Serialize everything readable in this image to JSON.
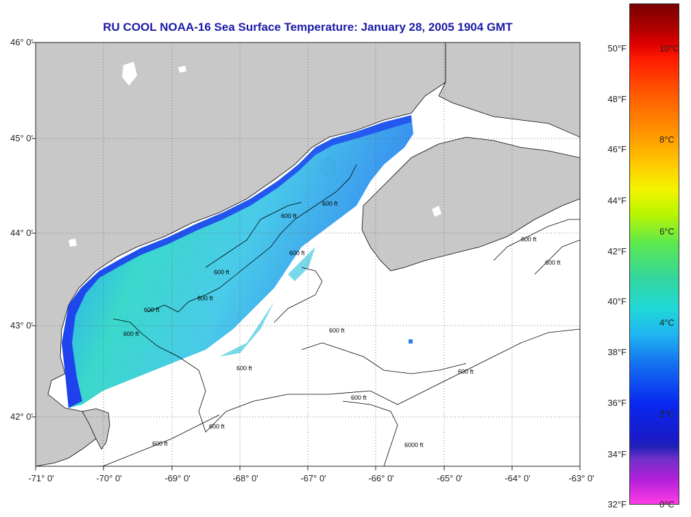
{
  "title": "RU COOL  NOAA-16  Sea Surface Temperature:  January 28, 2005 1904 GMT",
  "latitude_labels": [
    "46° 0'",
    "45° 0'",
    "44° 0'",
    "43° 0'",
    "42° 0'"
  ],
  "longitude_labels": [
    "-71° 0'",
    "-70° 0'",
    "-69° 0'",
    "-68° 0'",
    "-67° 0'",
    "-66° 0'",
    "-65° 0'",
    "-64° 0'",
    "-63° 0'"
  ],
  "colorbar": {
    "fahrenheit_labels": [
      "50°F",
      "48°F",
      "46°F",
      "44°F",
      "42°F",
      "40°F",
      "38°F",
      "36°F",
      "34°F",
      "32°F"
    ],
    "celsius_labels": [
      "10°C",
      "8°C",
      "6°C",
      "4°C",
      "2°C",
      "0°C"
    ]
  },
  "contour_labels": [
    "600 ft",
    "600 ft",
    "600 ft",
    "600 ft",
    "600 ft",
    "600 ft",
    "600 ft",
    "600 ft",
    "600 ft",
    "600 ft",
    "600 ft",
    "600 ft",
    "600 ft",
    "600 ft",
    "600 ft",
    "6000 ft"
  ],
  "colors": {
    "land": "#c8c8c8",
    "ocean": "#ffffff",
    "title": "#1a1aa6",
    "grid": "#555555"
  }
}
